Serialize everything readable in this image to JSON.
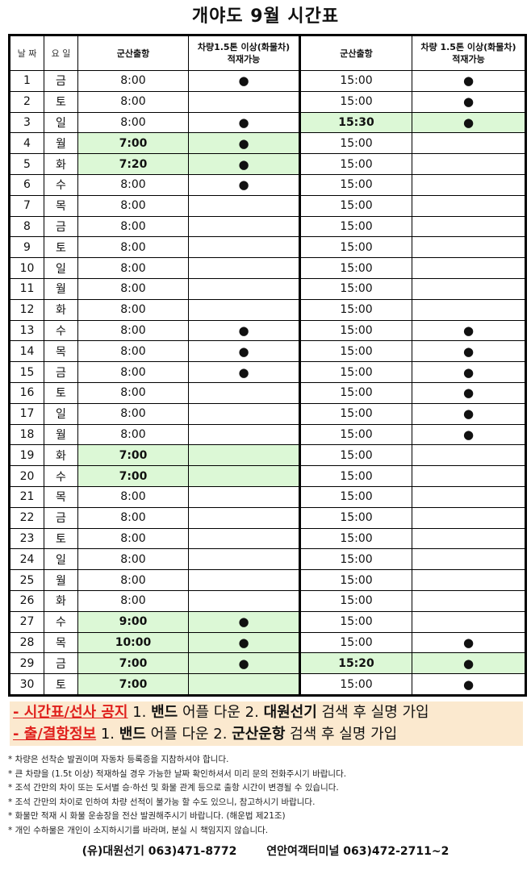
{
  "title": "개야도 9월 시간표",
  "headers": {
    "date": "날 짜",
    "day": "요 일",
    "am": "군산출항",
    "am_cargo": [
      "차량1.5톤 이상(화물차)",
      "적재가능"
    ],
    "pm": "군산출항",
    "pm_cargo": [
      "차량 1.5톤 이상(화물차)",
      "적재가능"
    ]
  },
  "colors": {
    "highlight": "#dcf8d6",
    "notice_bg": "#fbe9cf",
    "notice_red": "#e0201c"
  },
  "rows": [
    {
      "date": "1",
      "day": "금",
      "am": "8:00",
      "am_cargo": true,
      "pm": "15:00",
      "pm_cargo": true
    },
    {
      "date": "2",
      "day": "토",
      "am": "8:00",
      "am_cargo": false,
      "pm": "15:00",
      "pm_cargo": true
    },
    {
      "date": "3",
      "day": "일",
      "am": "8:00",
      "am_cargo": true,
      "pm": "15:30",
      "pm_cargo": true,
      "pm_hl": true
    },
    {
      "date": "4",
      "day": "월",
      "am": "7:00",
      "am_cargo": true,
      "am_hl": true,
      "pm": "15:00",
      "pm_cargo": false
    },
    {
      "date": "5",
      "day": "화",
      "am": "7:20",
      "am_cargo": true,
      "am_hl": true,
      "pm": "15:00",
      "pm_cargo": false
    },
    {
      "date": "6",
      "day": "수",
      "am": "8:00",
      "am_cargo": true,
      "pm": "15:00",
      "pm_cargo": false
    },
    {
      "date": "7",
      "day": "목",
      "am": "8:00",
      "am_cargo": false,
      "pm": "15:00",
      "pm_cargo": false
    },
    {
      "date": "8",
      "day": "금",
      "am": "8:00",
      "am_cargo": false,
      "pm": "15:00",
      "pm_cargo": false
    },
    {
      "date": "9",
      "day": "토",
      "am": "8:00",
      "am_cargo": false,
      "pm": "15:00",
      "pm_cargo": false
    },
    {
      "date": "10",
      "day": "일",
      "am": "8:00",
      "am_cargo": false,
      "pm": "15:00",
      "pm_cargo": false
    },
    {
      "date": "11",
      "day": "월",
      "am": "8:00",
      "am_cargo": false,
      "pm": "15:00",
      "pm_cargo": false
    },
    {
      "date": "12",
      "day": "화",
      "am": "8:00",
      "am_cargo": false,
      "pm": "15:00",
      "pm_cargo": false
    },
    {
      "date": "13",
      "day": "수",
      "am": "8:00",
      "am_cargo": true,
      "pm": "15:00",
      "pm_cargo": true
    },
    {
      "date": "14",
      "day": "목",
      "am": "8:00",
      "am_cargo": true,
      "pm": "15:00",
      "pm_cargo": true
    },
    {
      "date": "15",
      "day": "금",
      "am": "8:00",
      "am_cargo": true,
      "pm": "15:00",
      "pm_cargo": true
    },
    {
      "date": "16",
      "day": "토",
      "am": "8:00",
      "am_cargo": false,
      "pm": "15:00",
      "pm_cargo": true
    },
    {
      "date": "17",
      "day": "일",
      "am": "8:00",
      "am_cargo": false,
      "pm": "15:00",
      "pm_cargo": true
    },
    {
      "date": "18",
      "day": "월",
      "am": "8:00",
      "am_cargo": false,
      "pm": "15:00",
      "pm_cargo": true
    },
    {
      "date": "19",
      "day": "화",
      "am": "7:00",
      "am_cargo": false,
      "am_hl": true,
      "pm": "15:00",
      "pm_cargo": false
    },
    {
      "date": "20",
      "day": "수",
      "am": "7:00",
      "am_cargo": false,
      "am_hl": true,
      "pm": "15:00",
      "pm_cargo": false
    },
    {
      "date": "21",
      "day": "목",
      "am": "8:00",
      "am_cargo": false,
      "pm": "15:00",
      "pm_cargo": false
    },
    {
      "date": "22",
      "day": "금",
      "am": "8:00",
      "am_cargo": false,
      "pm": "15:00",
      "pm_cargo": false
    },
    {
      "date": "23",
      "day": "토",
      "am": "8:00",
      "am_cargo": false,
      "pm": "15:00",
      "pm_cargo": false
    },
    {
      "date": "24",
      "day": "일",
      "am": "8:00",
      "am_cargo": false,
      "pm": "15:00",
      "pm_cargo": false
    },
    {
      "date": "25",
      "day": "월",
      "am": "8:00",
      "am_cargo": false,
      "pm": "15:00",
      "pm_cargo": false
    },
    {
      "date": "26",
      "day": "화",
      "am": "8:00",
      "am_cargo": false,
      "pm": "15:00",
      "pm_cargo": false
    },
    {
      "date": "27",
      "day": "수",
      "am": "9:00",
      "am_cargo": true,
      "am_hl": true,
      "pm": "15:00",
      "pm_cargo": false
    },
    {
      "date": "28",
      "day": "목",
      "am": "10:00",
      "am_cargo": true,
      "am_hl": true,
      "pm": "15:00",
      "pm_cargo": true
    },
    {
      "date": "29",
      "day": "금",
      "am": "7:00",
      "am_cargo": true,
      "am_hl": true,
      "pm": "15:20",
      "pm_cargo": true,
      "pm_hl": true
    },
    {
      "date": "30",
      "day": "토",
      "am": "7:00",
      "am_cargo": false,
      "am_hl": true,
      "pm": "15:00",
      "pm_cargo": true
    }
  ],
  "info": [
    {
      "label": "- 시간표/선사 공지",
      "t1": " 1. ",
      "b1": "밴드",
      "t2": " 어플 다운 2. ",
      "b2": "대원선기",
      "t3": " 검색 후 실명 가입"
    },
    {
      "label": "- 출/결항정보",
      "t1": " 1. ",
      "b1": "밴드",
      "t2": " 어플 다운 2. ",
      "b2": "군산운항",
      "t3": " 검색 후 실명 가입"
    }
  ],
  "notes": [
    "* 차량은 선착순 발권이며 자동차 등록증을 지참하셔야 합니다.",
    "* 큰 차량을 (1.5t 이상) 적재하실 경우 가능한 날짜 확인하셔서 미리 문의 전화주시기 바랍니다.",
    "* 조석 간만의 차이 또는 도서별 승·하선 및 화물 관계 등으로 출항 시간이 변경될 수 있습니다.",
    "* 조석 간만의 차이로 인하여 차량 선적이 불가능 할 수도 있으니, 참고하시기 바랍니다.",
    "* 화물만 적재 시 화물 운송장을 전산 발권해주시기 바랍니다. (해운법 제21조)",
    "* 개인 수하물은 개인이 소지하시기를 바라며, 분실 시 책임지지 않습니다."
  ],
  "footer": {
    "company": "(유)대원선기 063)471-8772",
    "terminal": "연안여객터미널 063)472-2711~2"
  }
}
